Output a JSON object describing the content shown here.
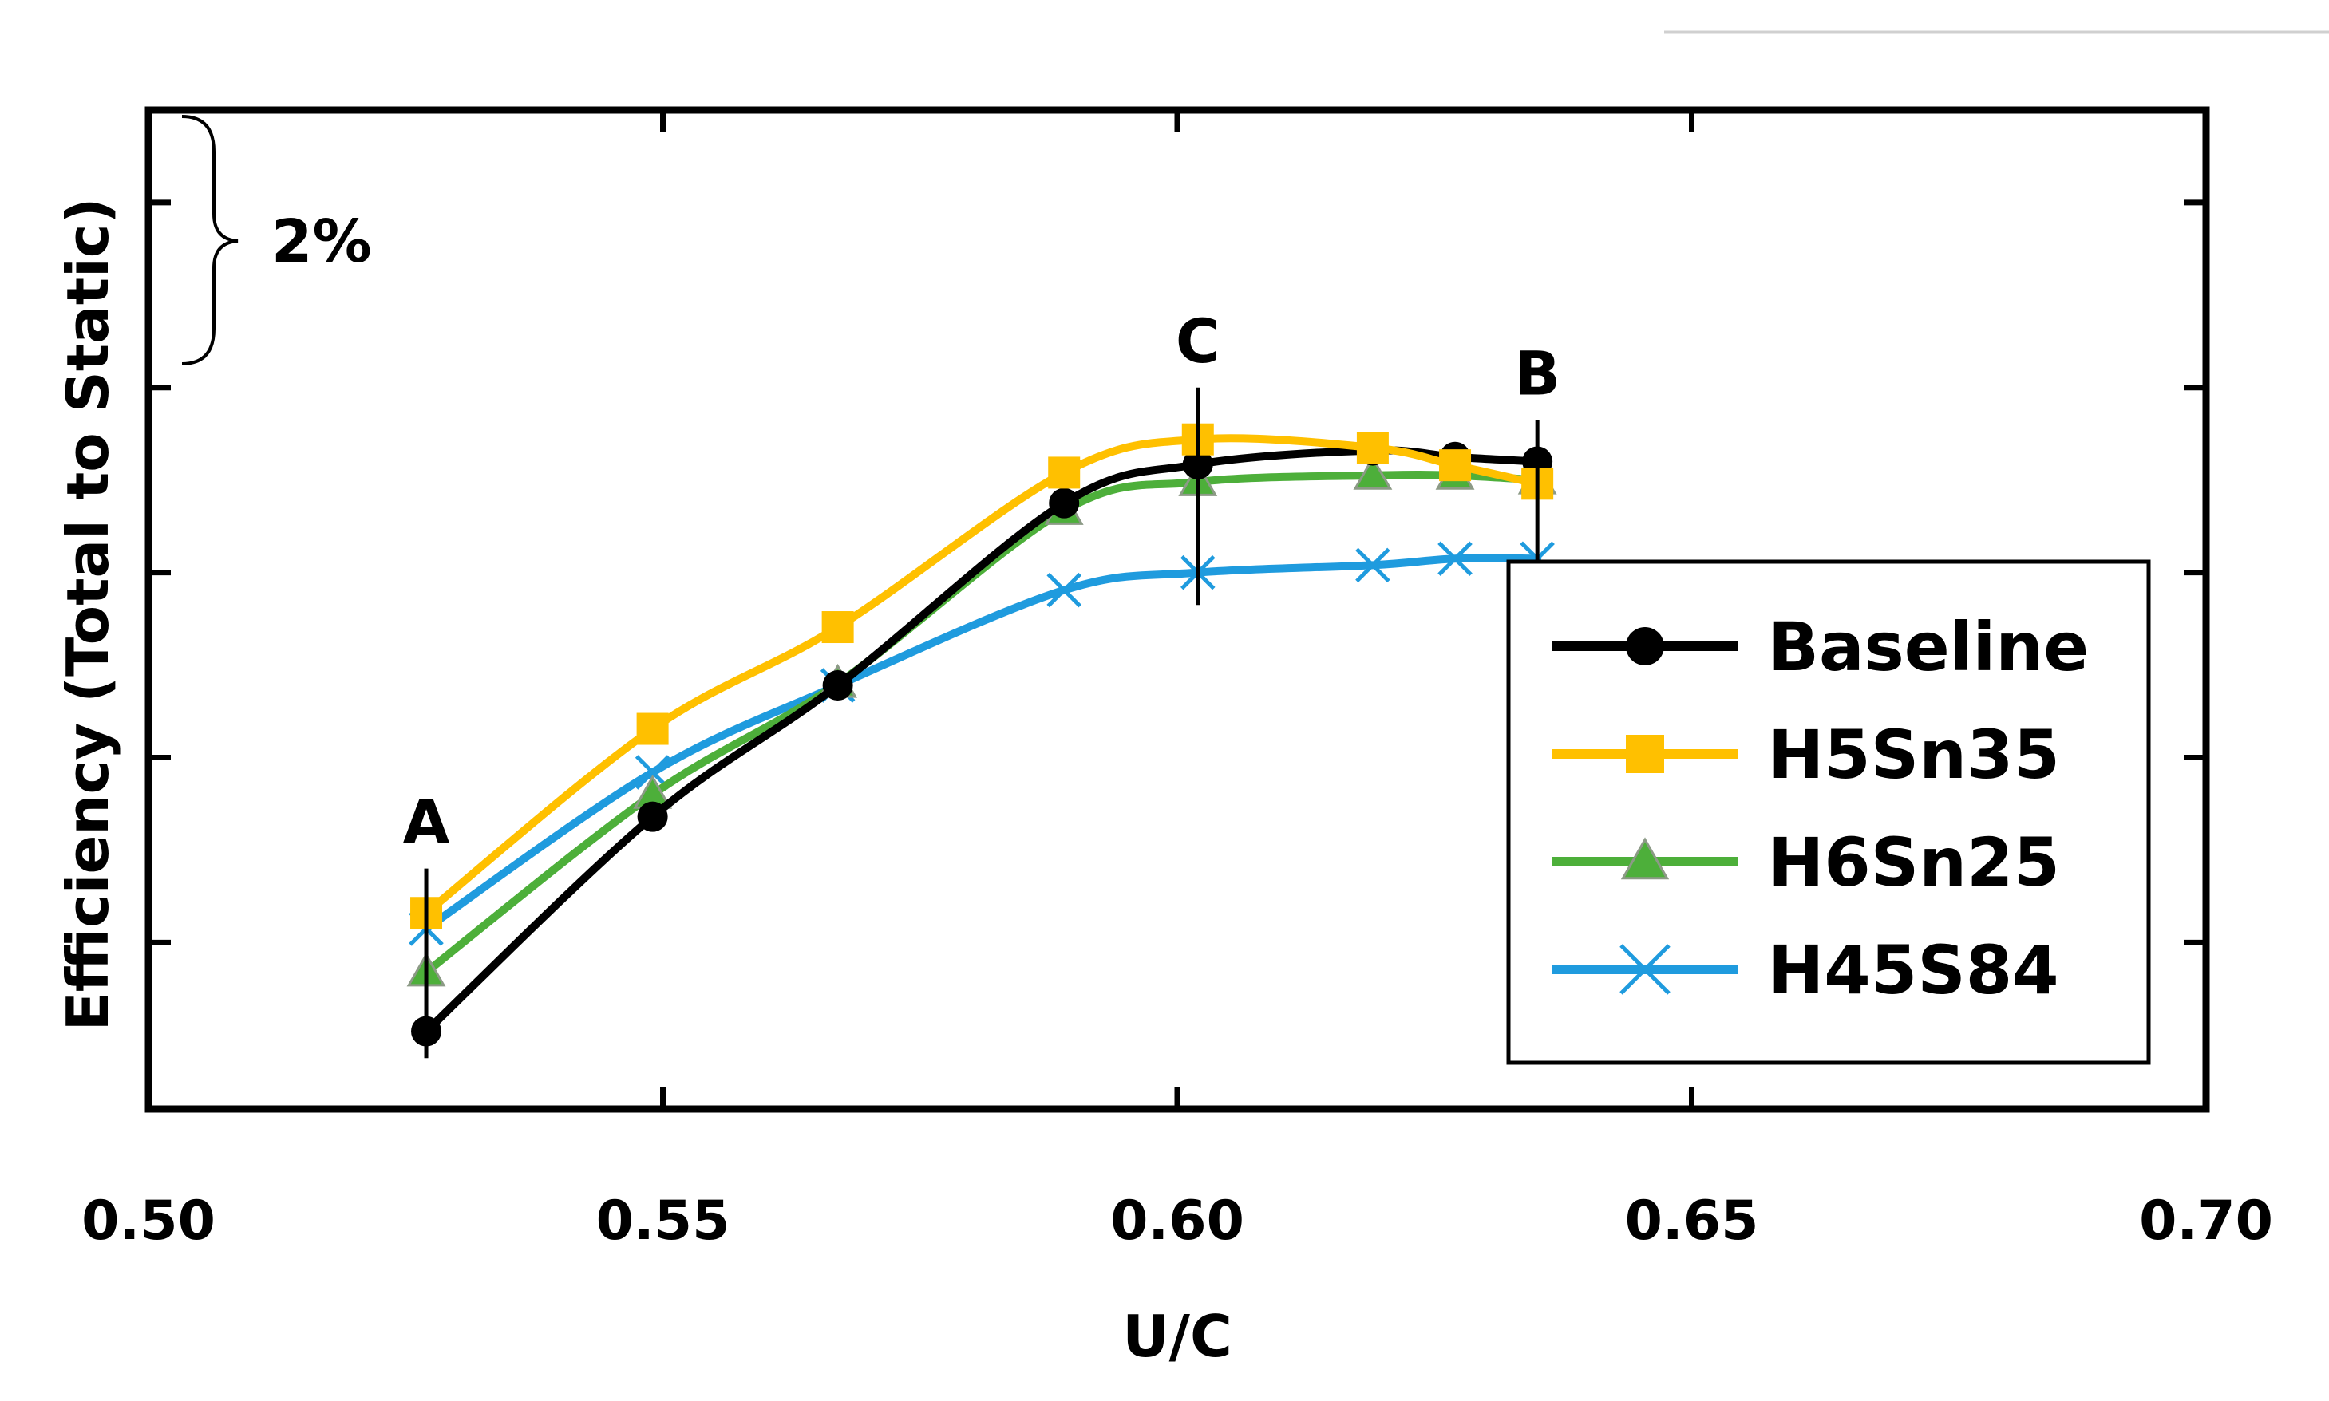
{
  "chart_data": {
    "type": "line",
    "xlabel": "U/C",
    "ylabel": "Efficiency (Total to Static)",
    "xlim": [
      0.5,
      0.7
    ],
    "xticks": [
      "0.50",
      "0.55",
      "0.60",
      "0.65",
      "0.70"
    ],
    "y_units": "relative efficiency (%), y-axis tick labels not shown",
    "ylim": [
      -9.8,
      1.0
    ],
    "scale_annotation": "2%",
    "grid": false,
    "legend_position": "bottom-right",
    "series": [
      {
        "name": "Baseline",
        "color": "#000000",
        "marker": "circle",
        "x": [
          0.527,
          0.549,
          0.567,
          0.589,
          0.602,
          0.619,
          0.627,
          0.635
        ],
        "y": [
          -8.96,
          -6.64,
          -5.22,
          -3.25,
          -2.83,
          -2.68,
          -2.75,
          -2.8
        ]
      },
      {
        "name": "H5Sn35",
        "color": "#FFC000",
        "marker": "square",
        "x": [
          0.527,
          0.549,
          0.567,
          0.589,
          0.602,
          0.619,
          0.627,
          0.635
        ],
        "y": [
          -7.68,
          -5.69,
          -4.59,
          -2.92,
          -2.56,
          -2.65,
          -2.84,
          -3.04
        ]
      },
      {
        "name": "H6Sn25",
        "color": "#4DAF3A",
        "marker": "triangle",
        "x": [
          0.527,
          0.549,
          0.567,
          0.589,
          0.602,
          0.619,
          0.627,
          0.635
        ],
        "y": [
          -8.32,
          -6.4,
          -5.2,
          -3.33,
          -3.02,
          -2.95,
          -2.95,
          -3.0
        ]
      },
      {
        "name": "H45S84",
        "color": "#1F9BDE",
        "marker": "x",
        "x": [
          0.527,
          0.549,
          0.567,
          0.589,
          0.602,
          0.619,
          0.627,
          0.635
        ],
        "y": [
          -7.85,
          -6.16,
          -5.22,
          -4.19,
          -4.0,
          -3.92,
          -3.85,
          -3.85
        ]
      }
    ],
    "annotations": [
      {
        "label": "A",
        "x": 0.527,
        "y_low": -9.25,
        "y_high": -7.2
      },
      {
        "label": "C",
        "x": 0.602,
        "y_low": -4.35,
        "y_high": -2.0
      },
      {
        "label": "B",
        "x": 0.635,
        "y_low": -4.15,
        "y_high": -2.35
      }
    ]
  }
}
